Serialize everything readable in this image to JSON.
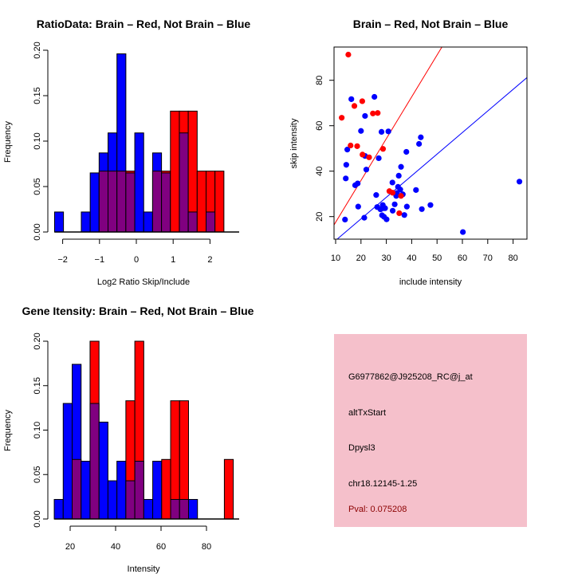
{
  "chart_data": [
    {
      "type": "bar",
      "title": "RatioData: Brain – Red, Not Brain – Blue",
      "xlabel": "Log2 Ratio Skip/Include",
      "ylabel": "Frequency",
      "xlim": [
        -2.4,
        2.8
      ],
      "ylim": [
        0,
        0.2
      ],
      "xticks": [
        -2,
        -1,
        0,
        1,
        2
      ],
      "yticks": [
        "0.00",
        "0.05",
        "0.10",
        "0.15",
        "0.20"
      ],
      "bin_start": -2.22,
      "bin_width": 0.242,
      "series": [
        {
          "name": "Not Brain",
          "color": "#0000ff",
          "values": [
            0.022,
            0,
            0,
            0.022,
            0.065,
            0.087,
            0.109,
            0.196,
            0.065,
            0.109,
            0.022,
            0.087,
            0.065,
            0,
            0.109,
            0.022,
            0,
            0.022,
            0,
            0
          ]
        },
        {
          "name": "Brain",
          "color": "#ff0000",
          "values": [
            0,
            0,
            0,
            0,
            0,
            0.067,
            0.067,
            0.067,
            0.067,
            0,
            0,
            0.067,
            0.067,
            0.133,
            0.133,
            0.133,
            0.067,
            0.067,
            0.067,
            0
          ]
        }
      ],
      "overlap_color": "#800080"
    },
    {
      "type": "scatter",
      "title": "Brain – Red, Not Brain – Blue",
      "xlabel": "include intensity",
      "ylabel": "skip intensity",
      "xlim": [
        9.4,
        85.7
      ],
      "ylim": [
        10.1,
        94.6
      ],
      "xticks": [
        10,
        20,
        30,
        40,
        50,
        60,
        70,
        80
      ],
      "yticks": [
        20,
        40,
        60,
        80
      ],
      "series": [
        {
          "name": "Brain",
          "color": "#ff0000",
          "points": [
            [
              15.0,
              91.3
            ],
            [
              12.4,
              63.5
            ],
            [
              17.4,
              68.7
            ],
            [
              20.5,
              70.8
            ],
            [
              15.9,
              51.3
            ],
            [
              18.5,
              51.0
            ],
            [
              24.7,
              65.4
            ],
            [
              26.6,
              65.6
            ],
            [
              20.6,
              47.3
            ],
            [
              23.2,
              46.1
            ],
            [
              28.7,
              49.8
            ],
            [
              31.2,
              31.2
            ],
            [
              32.5,
              30.5
            ],
            [
              35.8,
              29.1
            ],
            [
              35.1,
              21.5
            ]
          ],
          "fit": {
            "slope": 1.84,
            "intercept": -0.9
          }
        },
        {
          "name": "Not Brain",
          "color": "#0000ff",
          "points": [
            [
              16.2,
              71.7
            ],
            [
              25.3,
              72.7
            ],
            [
              21.6,
              64.3
            ],
            [
              20.0,
              57.7
            ],
            [
              28.1,
              57.3
            ],
            [
              30.8,
              57.5
            ],
            [
              14.6,
              49.5
            ],
            [
              21.6,
              46.7
            ],
            [
              27.0,
              45.7
            ],
            [
              14.2,
              42.8
            ],
            [
              22.1,
              40.7
            ],
            [
              14.0,
              36.8
            ],
            [
              17.7,
              33.8
            ],
            [
              18.7,
              34.6
            ],
            [
              43.6,
              54.9
            ],
            [
              42.9,
              52.0
            ],
            [
              37.9,
              48.5
            ],
            [
              35.8,
              41.9
            ],
            [
              34.9,
              38.0
            ],
            [
              32.4,
              35.0
            ],
            [
              34.6,
              33.1
            ],
            [
              35.5,
              31.9
            ],
            [
              34.2,
              30.4
            ],
            [
              33.9,
              29.1
            ],
            [
              36.5,
              29.8
            ],
            [
              26.0,
              29.5
            ],
            [
              41.7,
              31.7
            ],
            [
              33.3,
              25.4
            ],
            [
              28.6,
              25.1
            ],
            [
              26.4,
              24.2
            ],
            [
              28.9,
              23.7
            ],
            [
              29.5,
              23.7
            ],
            [
              27.7,
              23.2
            ],
            [
              38.1,
              24.4
            ],
            [
              18.9,
              24.4
            ],
            [
              32.5,
              22.6
            ],
            [
              44.0,
              23.3
            ],
            [
              47.4,
              25.1
            ],
            [
              28.3,
              20.6
            ],
            [
              29.1,
              19.9
            ],
            [
              30.1,
              18.8
            ],
            [
              37.1,
              20.7
            ],
            [
              21.3,
              19.5
            ],
            [
              13.7,
              18.7
            ],
            [
              60.2,
              13.2
            ],
            [
              82.5,
              35.4
            ]
          ],
          "fit": {
            "slope": 0.95,
            "intercept": 0.0
          }
        }
      ]
    },
    {
      "type": "bar",
      "title": "Gene Itensity: Brain – Red, Not Brain – Blue",
      "xlabel": "Intensity",
      "ylabel": "Frequency",
      "xlim": [
        10,
        95
      ],
      "ylim": [
        0,
        0.2
      ],
      "xticks": [
        20,
        40,
        60,
        80
      ],
      "yticks": [
        "0.00",
        "0.05",
        "0.10",
        "0.15",
        "0.20"
      ],
      "bin_start": 13,
      "bin_width": 3.94,
      "series": [
        {
          "name": "Not Brain",
          "color": "#0000ff",
          "values": [
            0.022,
            0.13,
            0.174,
            0.065,
            0.13,
            0.109,
            0.043,
            0.065,
            0.043,
            0.065,
            0.022,
            0.065,
            0,
            0.022,
            0.022,
            0.022,
            0,
            0,
            0,
            0
          ]
        },
        {
          "name": "Brain",
          "color": "#ff0000",
          "values": [
            0,
            0,
            0.067,
            0,
            0.2,
            0,
            0,
            0,
            0.133,
            0.2,
            0,
            0,
            0.067,
            0.133,
            0.133,
            0,
            0,
            0,
            0,
            0.067
          ]
        }
      ],
      "overlap_color": "#800080"
    }
  ],
  "info_panel": {
    "background": "#f5c0cb",
    "probe_id": "G6977862@J925208_RC@j_at",
    "event_type": "altTxStart",
    "gene": "Dpysl3",
    "location": "chr18.12145-1.25",
    "pval": "Pval: 0.075208",
    "pval_color": "#8b0000"
  }
}
